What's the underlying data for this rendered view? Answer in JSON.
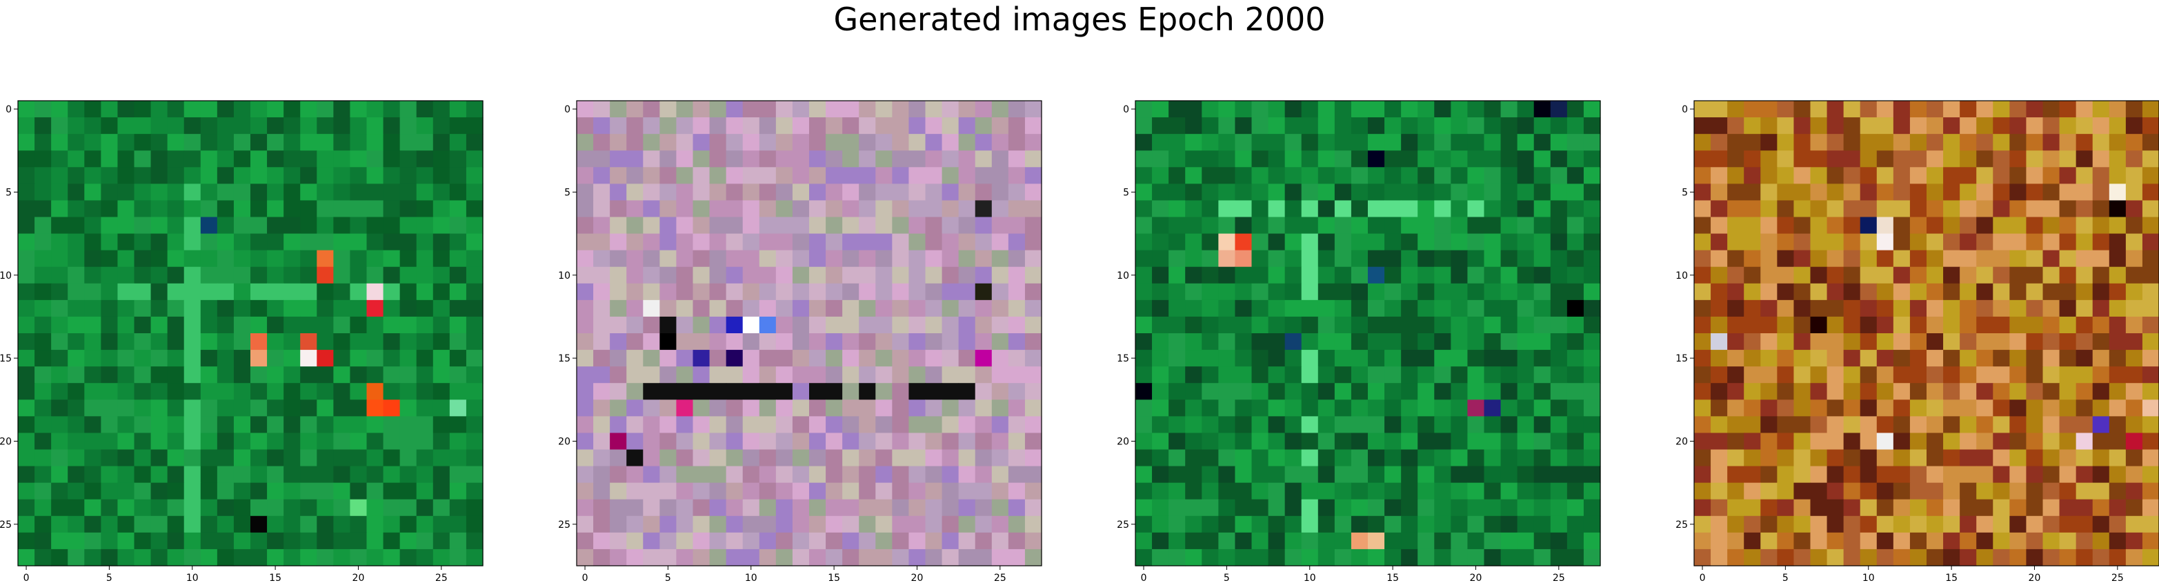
{
  "figure": {
    "title": "Generated images Epoch 2000"
  },
  "chart_data": [
    {
      "type": "heatmap",
      "grid": [
        28,
        28
      ],
      "xlim": [
        -0.5,
        27.5
      ],
      "ylim": [
        27.5,
        -0.5
      ],
      "xticks": [
        0,
        5,
        10,
        15,
        20,
        25
      ],
      "yticks": [
        0,
        5,
        10,
        15,
        20,
        25
      ],
      "palette": {
        "base": [
          "#0b6b2e",
          "#0f8a3a",
          "#13993f",
          "#0a5a28",
          "#18a845",
          "#0c7a34",
          "#076026",
          "#1f9e4a"
        ],
        "highlights": [
          {
            "x": 18,
            "y": 9,
            "color": "#f07030"
          },
          {
            "x": 18,
            "y": 10,
            "color": "#e84020"
          },
          {
            "x": 21,
            "y": 11,
            "color": "#f4d8e0"
          },
          {
            "x": 21,
            "y": 12,
            "color": "#e82030"
          },
          {
            "x": 14,
            "y": 14,
            "color": "#f06a40"
          },
          {
            "x": 14,
            "y": 15,
            "color": "#f0a070"
          },
          {
            "x": 17,
            "y": 14,
            "color": "#e05030"
          },
          {
            "x": 17,
            "y": 15,
            "color": "#f8f0f0"
          },
          {
            "x": 18,
            "y": 15,
            "color": "#e02020"
          },
          {
            "x": 21,
            "y": 17,
            "color": "#f06010"
          },
          {
            "x": 21,
            "y": 18,
            "color": "#ff5010"
          },
          {
            "x": 22,
            "y": 18,
            "color": "#ff4010"
          },
          {
            "x": 11,
            "y": 7,
            "color": "#0a4070"
          },
          {
            "x": 14,
            "y": 25,
            "color": "#050505"
          },
          {
            "x": 20,
            "y": 24,
            "color": "#60e080"
          },
          {
            "x": 26,
            "y": 18,
            "color": "#70e0a0"
          }
        ],
        "vertical_stripe_col": 10,
        "horizontal_stripe_row": 11,
        "stripe_color": "#3ac46a",
        "dark_row_color": "#06401c"
      }
    },
    {
      "type": "heatmap",
      "grid": [
        28,
        28
      ],
      "xlim": [
        -0.5,
        27.5
      ],
      "ylim": [
        27.5,
        -0.5
      ],
      "xticks": [
        0,
        5,
        10,
        15,
        20,
        25
      ],
      "yticks": [
        0,
        5,
        10,
        15,
        20,
        25
      ],
      "palette": {
        "base": [
          "#c090b8",
          "#b8a0c0",
          "#d0b0c8",
          "#a890b0",
          "#c8c0b0",
          "#b080a0",
          "#d8a8d0",
          "#9aa890",
          "#c0a0a8",
          "#a080c8"
        ],
        "highlights": [
          {
            "x": 4,
            "y": 12,
            "color": "#f0f0f0"
          },
          {
            "x": 5,
            "y": 13,
            "color": "#101010"
          },
          {
            "x": 5,
            "y": 14,
            "color": "#000000"
          },
          {
            "x": 10,
            "y": 13,
            "color": "#ffffff"
          },
          {
            "x": 9,
            "y": 13,
            "color": "#2020c0"
          },
          {
            "x": 11,
            "y": 13,
            "color": "#5080f0"
          },
          {
            "x": 7,
            "y": 15,
            "color": "#3020a0"
          },
          {
            "x": 9,
            "y": 15,
            "color": "#200060"
          },
          {
            "x": 24,
            "y": 15,
            "color": "#c000a0"
          },
          {
            "x": 2,
            "y": 20,
            "color": "#a00060"
          },
          {
            "x": 3,
            "y": 21,
            "color": "#101010"
          },
          {
            "x": 24,
            "y": 11,
            "color": "#202010"
          },
          {
            "x": 6,
            "y": 18,
            "color": "#e02080"
          },
          {
            "x": 24,
            "y": 6,
            "color": "#202020"
          }
        ],
        "dark_row": 17,
        "dark_row_color": "#101010"
      }
    },
    {
      "type": "heatmap",
      "grid": [
        28,
        28
      ],
      "xlim": [
        -0.5,
        27.5
      ],
      "ylim": [
        27.5,
        -0.5
      ],
      "xticks": [
        0,
        5,
        10,
        15,
        20,
        25
      ],
      "yticks": [
        0,
        5,
        10,
        15,
        20,
        25
      ],
      "palette": {
        "base": [
          "#0c7a34",
          "#0f8a3a",
          "#13993f",
          "#0a5a28",
          "#18a845",
          "#097030",
          "#1f9e4a",
          "#0a4a26"
        ],
        "highlights": [
          {
            "x": 5,
            "y": 8,
            "color": "#f8d0b0"
          },
          {
            "x": 6,
            "y": 8,
            "color": "#f04020"
          },
          {
            "x": 5,
            "y": 9,
            "color": "#f0b090"
          },
          {
            "x": 6,
            "y": 9,
            "color": "#f09070"
          },
          {
            "x": 14,
            "y": 3,
            "color": "#000020"
          },
          {
            "x": 24,
            "y": 0,
            "color": "#000010"
          },
          {
            "x": 25,
            "y": 0,
            "color": "#102050"
          },
          {
            "x": 14,
            "y": 10,
            "color": "#105080"
          },
          {
            "x": 9,
            "y": 14,
            "color": "#104070"
          },
          {
            "x": 21,
            "y": 18,
            "color": "#202080"
          },
          {
            "x": 20,
            "y": 18,
            "color": "#a02060"
          },
          {
            "x": 0,
            "y": 17,
            "color": "#000010"
          },
          {
            "x": 14,
            "y": 26,
            "color": "#f0c090"
          },
          {
            "x": 13,
            "y": 26,
            "color": "#f0a070"
          },
          {
            "x": 26,
            "y": 12,
            "color": "#000000"
          }
        ],
        "vertical_stripe_col": 10,
        "horizontal_stripe_row": 6,
        "stripe_color": "#5ae08a"
      }
    },
    {
      "type": "heatmap",
      "grid": [
        28,
        28
      ],
      "xlim": [
        -0.5,
        27.5
      ],
      "ylim": [
        27.5,
        -0.5
      ],
      "xticks": [
        0,
        5,
        10,
        15,
        20,
        25
      ],
      "yticks": [
        0,
        5,
        10,
        15,
        20,
        25
      ],
      "palette": {
        "base": [
          "#c07020",
          "#b08010",
          "#d09040",
          "#a04010",
          "#c0a020",
          "#804010",
          "#e0a060",
          "#b06030",
          "#903020",
          "#d0b040",
          "#602010"
        ],
        "highlights": [
          {
            "x": 10,
            "y": 7,
            "color": "#0a1a60"
          },
          {
            "x": 11,
            "y": 7,
            "color": "#f0e0d0"
          },
          {
            "x": 11,
            "y": 8,
            "color": "#f8f0f0"
          },
          {
            "x": 25,
            "y": 6,
            "color": "#100000"
          },
          {
            "x": 25,
            "y": 5,
            "color": "#f8f0e0"
          },
          {
            "x": 24,
            "y": 19,
            "color": "#5030c0"
          },
          {
            "x": 23,
            "y": 20,
            "color": "#f0d0e0"
          },
          {
            "x": 1,
            "y": 14,
            "color": "#d0d0e0"
          },
          {
            "x": 7,
            "y": 13,
            "color": "#200000"
          },
          {
            "x": 27,
            "y": 18,
            "color": "#f0c0a0"
          },
          {
            "x": 11,
            "y": 20,
            "color": "#f0f0f0"
          },
          {
            "x": 26,
            "y": 20,
            "color": "#c01030"
          }
        ]
      }
    }
  ]
}
